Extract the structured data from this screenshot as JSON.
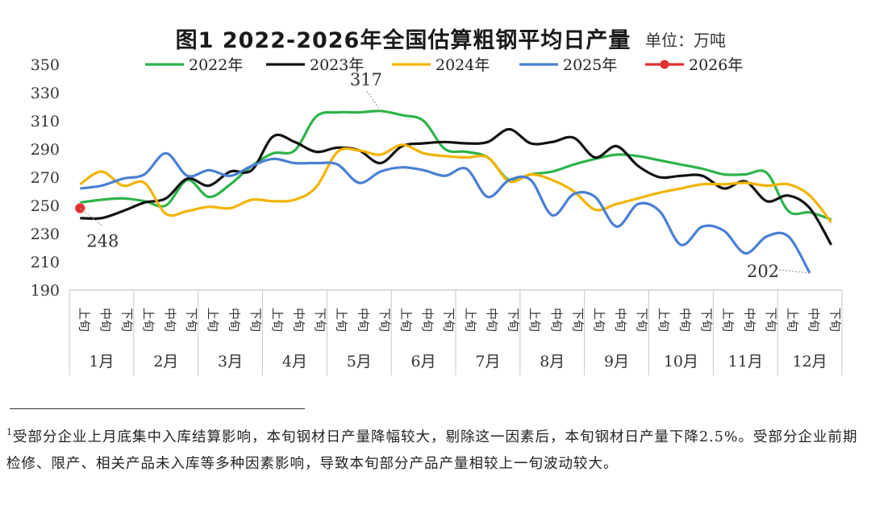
{
  "chart_data": {
    "type": "line",
    "title": "图1  2022-2026年全国估算粗钢平均日产量",
    "unit_label": "单位：万吨",
    "ylim": [
      190,
      350
    ],
    "yticks": [
      190,
      210,
      230,
      250,
      270,
      290,
      310,
      330,
      350
    ],
    "months": [
      "1月",
      "2月",
      "3月",
      "4月",
      "5月",
      "6月",
      "7月",
      "8月",
      "9月",
      "10月",
      "11月",
      "12月"
    ],
    "periods": [
      "上旬",
      "中旬",
      "下旬"
    ],
    "series": [
      {
        "name": "2022年",
        "color": "#2db34a",
        "marker": false,
        "values": [
          252,
          254,
          255,
          253,
          250,
          268,
          256,
          265,
          278,
          287,
          289,
          313,
          316,
          316,
          317,
          314,
          310,
          290,
          288,
          284,
          268,
          272,
          274,
          279,
          283,
          286,
          285,
          282,
          279,
          276,
          272,
          272,
          273,
          246,
          245,
          240
        ]
      },
      {
        "name": "2023年",
        "color": "#111111",
        "marker": false,
        "values": [
          241,
          241,
          246,
          252,
          255,
          269,
          264,
          274,
          275,
          299,
          295,
          288,
          291,
          289,
          280,
          292,
          294,
          295,
          294,
          295,
          304,
          294,
          295,
          298,
          284,
          292,
          278,
          270,
          271,
          271,
          262,
          267,
          253,
          257,
          248,
          222
        ]
      },
      {
        "name": "2024年",
        "color": "#f2b400",
        "marker": false,
        "values": [
          265,
          274,
          264,
          266,
          244,
          246,
          249,
          248,
          254,
          253,
          254,
          263,
          288,
          289,
          286,
          293,
          287,
          285,
          284,
          284,
          267,
          272,
          268,
          260,
          247,
          251,
          255,
          259,
          262,
          265,
          265,
          266,
          264,
          265,
          257,
          238
        ]
      },
      {
        "name": "2025年",
        "color": "#4a7fd4",
        "marker": false,
        "values": [
          262,
          264,
          269,
          272,
          287,
          271,
          275,
          271,
          278,
          283,
          280,
          280,
          279,
          266,
          274,
          277,
          275,
          271,
          276,
          256,
          268,
          268,
          243,
          258,
          256,
          235,
          251,
          246,
          222,
          235,
          232,
          216,
          228,
          228,
          202
        ]
      },
      {
        "name": "2026年",
        "color": "#e03030",
        "marker": true,
        "values": [
          248
        ]
      }
    ],
    "annotations": [
      {
        "label": "317",
        "series": "2022年",
        "index": 14
      },
      {
        "label": "248",
        "series": "2026年",
        "index": 0
      },
      {
        "label": "202",
        "series": "2025年",
        "index": 34
      }
    ]
  },
  "footnote": {
    "marker": "1",
    "text": "受部分企业上月底集中入库结算影响，本旬钢材日产量降幅较大，剔除这一因素后，本旬钢材日产量下降2.5%。受部分企业前期检修、限产、相关产品未入库等多种因素影响，导致本旬部分产品产量相较上一旬波动较大。"
  }
}
